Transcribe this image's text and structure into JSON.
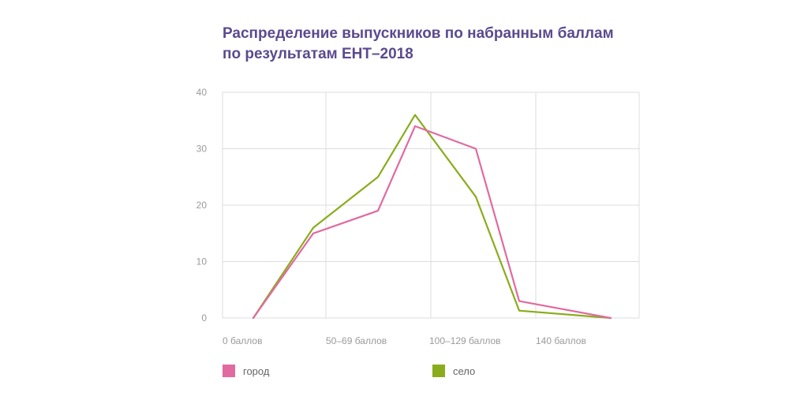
{
  "colors": {
    "series_1": "#e16aa0",
    "series_2": "#8aac1c",
    "grid": "#dddddd",
    "title": "#5b4a8e"
  },
  "chart_data": {
    "type": "line",
    "title_lines": [
      "Распределение выпускников по набранным баллам",
      "по результатам ЕНТ–2018"
    ],
    "x_tick_labels": [
      "0 баллов",
      "50–69 баллов",
      "100–129 баллов",
      "140 баллов"
    ],
    "y_ticks": [
      0,
      10,
      20,
      30,
      40
    ],
    "ylim": [
      0,
      40
    ],
    "grid": true,
    "legend_position": "bottom",
    "categories": [
      "0 баллов",
      "",
      "50–69 баллов",
      "",
      "100–129 баллов",
      "",
      "140 баллов"
    ],
    "series": [
      {
        "name": "город",
        "values": [
          0,
          15,
          19,
          34,
          30,
          3,
          0
        ]
      },
      {
        "name": "село",
        "values": [
          0,
          16,
          25,
          36,
          21.5,
          1.3,
          0
        ]
      }
    ]
  }
}
